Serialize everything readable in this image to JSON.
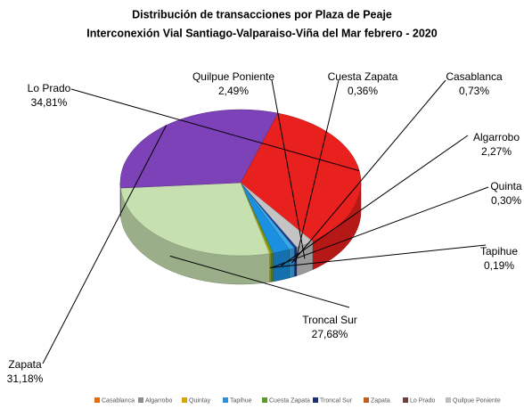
{
  "chart_data": {
    "type": "pie",
    "title": "Distribución de transacciones por Plaza de Peaje",
    "subtitle": "Interconexión Vial Santiago-Valparaiso-Viña  del Mar febrero - 2020",
    "categories": [
      "Lo Prado",
      "Quilpue Poniente",
      "Cuesta Zapata",
      "Casablanca",
      "Algarrobo",
      "Quinta",
      "Tapihue",
      "Troncal Sur",
      "Zapata"
    ],
    "values": [
      34.81,
      2.49,
      0.36,
      0.73,
      2.27,
      0.3,
      0.19,
      27.68,
      31.18
    ],
    "value_labels": [
      "34,81%",
      "2,49%",
      "0,36%",
      "0,73%",
      "2,27%",
      "0,30%",
      "0,19%",
      "27,68%",
      "31,18%"
    ],
    "colors": [
      "#e8201e",
      "#c4c4c4",
      "#1f3a93",
      "#3aa8e8",
      "#1b8fe0",
      "#6a9a1f",
      "#c8b400",
      "#c6e0b0",
      "#7d42b8"
    ],
    "legend": [
      {
        "name": "Casablanca",
        "color": "#e46c0a"
      },
      {
        "name": "Algarrobo",
        "color": "#8c8c8c"
      },
      {
        "name": "Quintay",
        "color": "#d4a800"
      },
      {
        "name": "Tapihue",
        "color": "#2e8fd6"
      },
      {
        "name": "Cuesta Zapata",
        "color": "#5a9a2a"
      },
      {
        "name": "Troncal Sur",
        "color": "#1f2f70"
      },
      {
        "name": "Zapata",
        "color": "#c0601a"
      },
      {
        "name": "Lo Prado",
        "color": "#6a4040"
      },
      {
        "name": "Quilpue Poniente",
        "color": "#bdbdbd"
      }
    ]
  }
}
